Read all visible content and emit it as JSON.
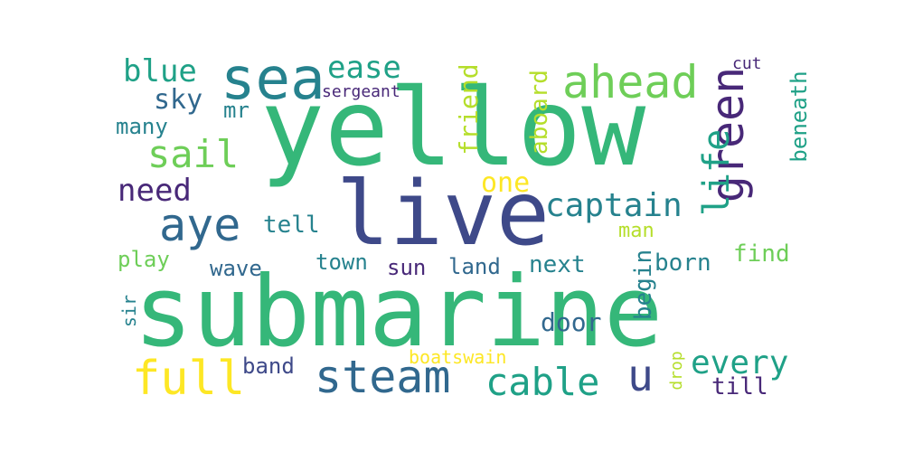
{
  "palette": {
    "yellow": "#fde725",
    "lime": "#b5de2b",
    "light_green": "#6ece58",
    "green": "#35b779",
    "teal_green": "#1fa187",
    "teal": "#26828e",
    "blue_teal": "#31688e",
    "indigo": "#3e4989",
    "purple": "#482878",
    "dark_purple": "#440154"
  },
  "words": [
    {
      "text": "submarine"
    },
    {
      "text": "yellow"
    },
    {
      "text": "live"
    },
    {
      "text": "sea"
    },
    {
      "text": "aye"
    },
    {
      "text": "ahead"
    },
    {
      "text": "green"
    },
    {
      "text": "life"
    },
    {
      "text": "steam"
    },
    {
      "text": "full"
    },
    {
      "text": "cable"
    },
    {
      "text": "u"
    },
    {
      "text": "captain"
    },
    {
      "text": "every"
    },
    {
      "text": "ease"
    },
    {
      "text": "blue"
    },
    {
      "text": "sail"
    },
    {
      "text": "sky"
    },
    {
      "text": "need"
    },
    {
      "text": "one"
    },
    {
      "text": "friend"
    },
    {
      "text": "aboard"
    },
    {
      "text": "beneath"
    },
    {
      "text": "many"
    },
    {
      "text": "mr"
    },
    {
      "text": "sergeant"
    },
    {
      "text": "cut"
    },
    {
      "text": "tell"
    },
    {
      "text": "man"
    },
    {
      "text": "play"
    },
    {
      "text": "wave"
    },
    {
      "text": "town"
    },
    {
      "text": "sun"
    },
    {
      "text": "land"
    },
    {
      "text": "next"
    },
    {
      "text": "born"
    },
    {
      "text": "find"
    },
    {
      "text": "begin"
    },
    {
      "text": "door"
    },
    {
      "text": "sir"
    },
    {
      "text": "band"
    },
    {
      "text": "boatswain"
    },
    {
      "text": "drop"
    },
    {
      "text": "till"
    }
  ]
}
